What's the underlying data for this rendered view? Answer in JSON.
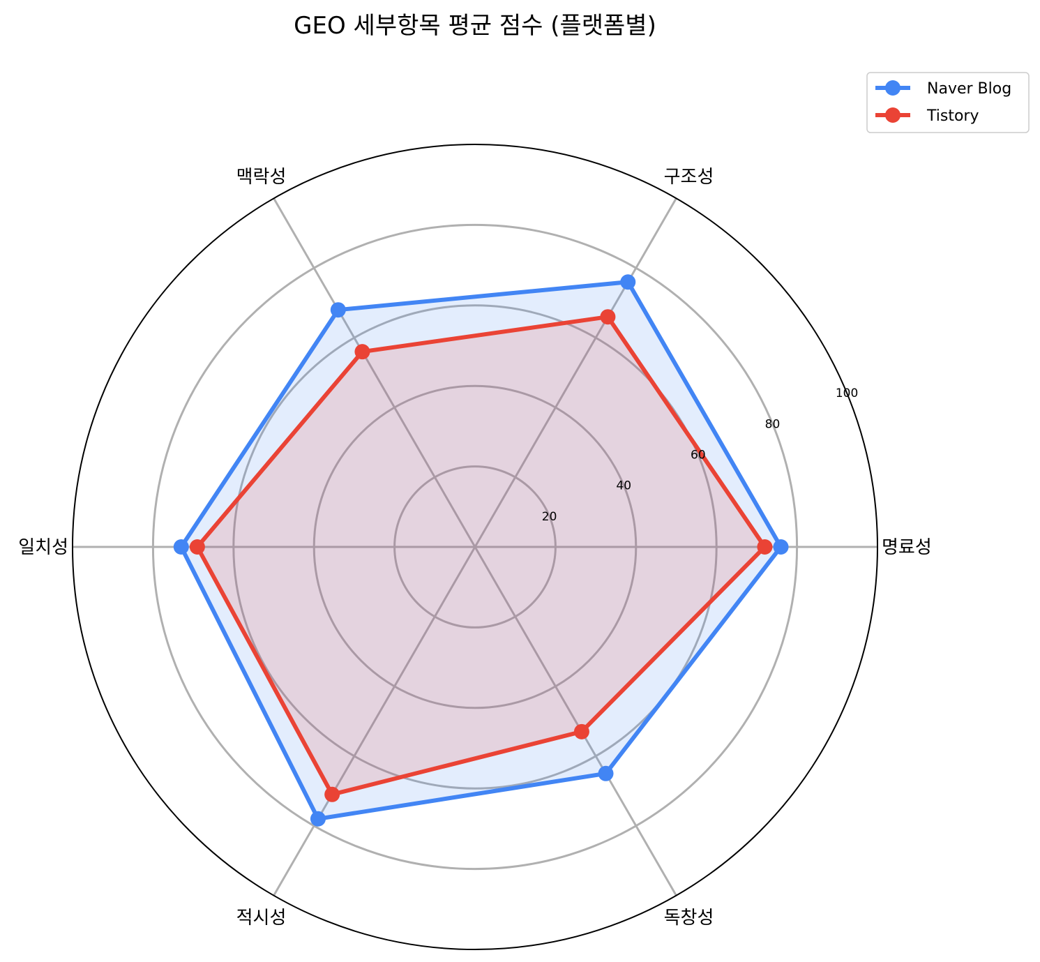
{
  "chart_data": {
    "type": "radar",
    "title": "GEO 세부항목 평균 점수 (플랫폼별)",
    "categories": [
      "명료성",
      "구조성",
      "맥락성",
      "일치성",
      "적시성",
      "독창성"
    ],
    "series": [
      {
        "name": "Naver Blog",
        "values": [
          76,
          76,
          68,
          73,
          78,
          65
        ],
        "color": "#4285f4"
      },
      {
        "name": "Tistory",
        "values": [
          72,
          66,
          56,
          69,
          71,
          53
        ],
        "color": "#ea4335"
      }
    ],
    "rlim": [
      0,
      100
    ],
    "rticks": [
      20,
      40,
      60,
      80,
      100
    ],
    "grid": true,
    "legend": "top-right"
  }
}
